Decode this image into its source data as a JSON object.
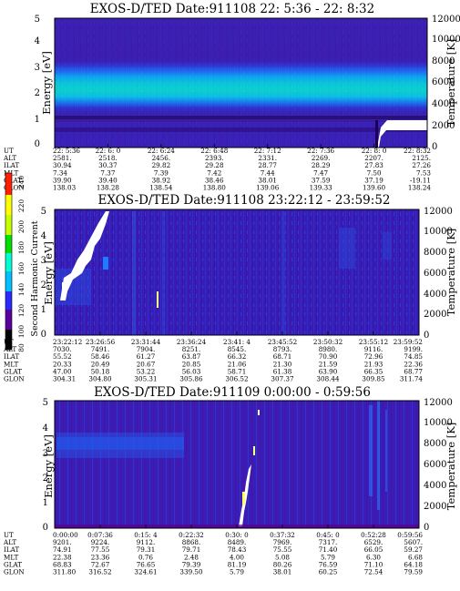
{
  "chart_data": {
    "type": "heatmap",
    "colorbar": {
      "label": "Second Harmonic Current",
      "ticks": [
        "80",
        "100",
        "120",
        "140",
        "160",
        "180",
        "200",
        "220",
        "240"
      ],
      "colors": [
        "#000000",
        "#5a00a0",
        "#2a2aff",
        "#00c0ff",
        "#00ffd0",
        "#00e000",
        "#c8ff00",
        "#ffff00",
        "#ff2000"
      ]
    },
    "panels": [
      {
        "title": "EXOS-D/TED   Date:911108  22: 5:36 - 22: 8:32",
        "ylabel": "Energy [eV]",
        "y2label": "Temperature [K]",
        "yticks": [
          "0",
          "1",
          "2",
          "3",
          "4",
          "5"
        ],
        "y2ticks": [
          "0",
          "2000",
          "4000",
          "6000",
          "8000",
          "10000",
          "12000"
        ],
        "ylim": [
          0,
          5
        ],
        "y2lim": [
          0,
          12000
        ],
        "table_rows": [
          "UT",
          "ALT",
          "ILAT",
          "MLT",
          "GLAT",
          "GLON"
        ],
        "columns": [
          [
            "22: 5:36",
            "2581.",
            "30.94",
            "7.34",
            "39.90",
            "138.03"
          ],
          [
            "22: 6: 0",
            "2518.",
            "30.37",
            "7.37",
            "39.40",
            "138.28"
          ],
          [
            "22: 6:24",
            "2456.",
            "29.82",
            "7.39",
            "38.92",
            "138.54"
          ],
          [
            "22: 6:48",
            "2393.",
            "29.28",
            "7.42",
            "38.46",
            "138.80"
          ],
          [
            "22: 7:12",
            "2331.",
            "28.77",
            "7.44",
            "38.01",
            "139.06"
          ],
          [
            "22: 7:36",
            "2269.",
            "28.29",
            "7.47",
            "37.59",
            "139.33"
          ],
          [
            "22: 8: 0",
            "2207.",
            "27.83",
            "7.50",
            "37.19",
            "139.60"
          ],
          [
            "22: 8:32",
            "2125.",
            "27.26",
            "7.53",
            "-19.11",
            "138.24"
          ]
        ]
      },
      {
        "title": "EXOS-D/TED   Date:911108  23:22:12 - 23:59:52",
        "ylabel": "Energy [eV]",
        "y2label": "Temperature [K]",
        "yticks": [
          "0",
          "1",
          "2",
          "3",
          "4",
          "5"
        ],
        "y2ticks": [
          "0",
          "2000",
          "4000",
          "6000",
          "8000",
          "10000",
          "12000"
        ],
        "ylim": [
          0,
          5
        ],
        "y2lim": [
          0,
          12000
        ],
        "table_rows": [
          "UT",
          "ALT",
          "ILAT",
          "MLT",
          "GLAT",
          "GLON"
        ],
        "columns": [
          [
            "23:22:12",
            "7030.",
            "55.52",
            "20.33",
            "47.00",
            "304.31"
          ],
          [
            "23:26:56",
            "7491.",
            "58.46",
            "20.49",
            "50.18",
            "304.80"
          ],
          [
            "23:31:44",
            "7904.",
            "61.27",
            "20.67",
            "53.22",
            "305.31"
          ],
          [
            "23:36:24",
            "8251.",
            "63.87",
            "20.85",
            "56.03",
            "305.86"
          ],
          [
            "23:41: 4",
            "8545.",
            "66.32",
            "21.06",
            "58.71",
            "306.52"
          ],
          [
            "23:45:52",
            "8793.",
            "68.71",
            "21.30",
            "61.38",
            "307.37"
          ],
          [
            "23:50:32",
            "8980.",
            "70.90",
            "21.59",
            "63.90",
            "308.44"
          ],
          [
            "23:55:12",
            "9116.",
            "72.96",
            "21.93",
            "66.35",
            "309.85"
          ],
          [
            "23:59:52",
            "9199.",
            "74.85",
            "22.36",
            "68.77",
            "311.74"
          ]
        ]
      },
      {
        "title": "EXOS-D/TED   Date:911109  0:00:00 - 0:59:56",
        "ylabel": "Energy [eV]",
        "y2label": "Temperature [K]",
        "yticks": [
          "0",
          "1",
          "2",
          "3",
          "4",
          "5"
        ],
        "y2ticks": [
          "0",
          "2000",
          "4000",
          "6000",
          "8000",
          "10000",
          "12000"
        ],
        "ylim": [
          0,
          5
        ],
        "y2lim": [
          0,
          12000
        ],
        "table_rows": [
          "UT",
          "ALT",
          "ILAT",
          "MLT",
          "GLAT",
          "GLON"
        ],
        "columns": [
          [
            "0:00:00",
            "9201.",
            "74.91",
            "22.38",
            "68.83",
            "311.80"
          ],
          [
            "0:07:36",
            "9224.",
            "77.55",
            "23.36",
            "72.67",
            "316.52"
          ],
          [
            "0:15: 4",
            "9112.",
            "79.31",
            "0.76",
            "76.65",
            "324.61"
          ],
          [
            "0:22:32",
            "8868.",
            "79.71",
            "2.48",
            "79.39",
            "339.50"
          ],
          [
            "0:30: 0",
            "8489.",
            "78.43",
            "4.00",
            "81.19",
            "5.79"
          ],
          [
            "0:37:32",
            "7969.",
            "75.55",
            "5.08",
            "80.26",
            "38.01"
          ],
          [
            "0:45: 0",
            "7317.",
            "71.40",
            "5.79",
            "76.59",
            "60.25"
          ],
          [
            "0:52:28",
            "6529.",
            "66.05",
            "6.30",
            "71.10",
            "72.54"
          ],
          [
            "0:59:56",
            "5607.",
            "59.27",
            "6.68",
            "64.18",
            "79.59"
          ]
        ]
      }
    ]
  }
}
